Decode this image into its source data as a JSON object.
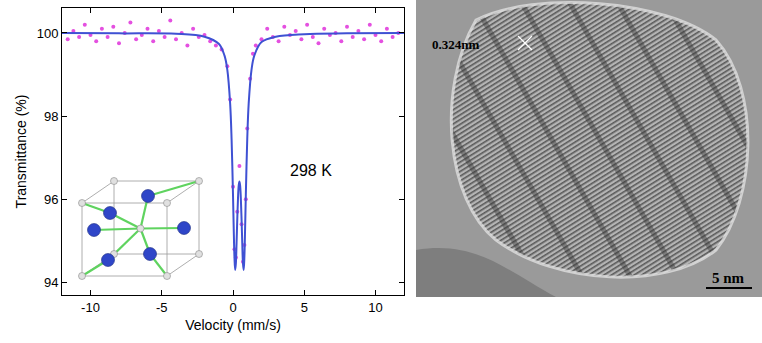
{
  "chart_data": {
    "type": "scatter",
    "x_label": "Velocity (mm/s)",
    "y_label": "Transmittance (%)",
    "annotations": [
      {
        "text": "298 K",
        "x": 5.5,
        "y": 96.7
      }
    ],
    "xlim": [
      -12,
      12
    ],
    "xticks": [
      -10,
      -5,
      0,
      5,
      10
    ],
    "ylim": [
      93.7,
      100.6
    ],
    "yticks": [
      94,
      96,
      98,
      100
    ],
    "grid": false,
    "series": [
      {
        "type": "scatter",
        "marker": "circle",
        "color": "#e450e0",
        "x": [
          -11.6,
          -11.2,
          -10.8,
          -10.4,
          -10.0,
          -9.6,
          -9.2,
          -8.8,
          -8.4,
          -8.0,
          -7.6,
          -7.2,
          -6.8,
          -6.4,
          -6.0,
          -5.6,
          -5.2,
          -4.8,
          -4.4,
          -4.0,
          -3.6,
          -3.2,
          -2.8,
          -2.4,
          -2.0,
          -1.6,
          -1.2,
          -0.8,
          -0.4,
          -0.2,
          0.0,
          0.1,
          0.2,
          0.3,
          0.45,
          0.6,
          0.7,
          0.8,
          0.9,
          1.0,
          1.2,
          1.4,
          1.6,
          2.0,
          2.4,
          2.8,
          3.2,
          3.6,
          4.0,
          4.4,
          4.8,
          5.2,
          5.6,
          6.0,
          6.4,
          6.8,
          7.2,
          7.6,
          8.0,
          8.4,
          8.8,
          9.2,
          9.6,
          10.0,
          10.4,
          10.8,
          11.2,
          11.6
        ],
        "values": [
          99.85,
          100.05,
          99.9,
          100.2,
          99.95,
          99.8,
          100.1,
          99.9,
          100.15,
          99.75,
          100.0,
          100.25,
          99.85,
          99.95,
          100.1,
          99.8,
          100.05,
          99.9,
          100.3,
          99.85,
          100.0,
          99.7,
          100.1,
          99.9,
          99.95,
          99.8,
          99.7,
          99.6,
          99.2,
          98.4,
          96.3,
          94.8,
          94.6,
          95.7,
          96.8,
          95.4,
          94.5,
          94.9,
          96.0,
          97.7,
          98.9,
          99.5,
          99.7,
          99.85,
          100.1,
          99.9,
          99.8,
          100.15,
          99.95,
          100.05,
          99.85,
          100.2,
          99.9,
          99.75,
          100.1,
          99.95,
          100.0,
          99.8,
          100.15,
          99.9,
          100.05,
          99.85,
          100.2,
          99.95,
          99.8,
          100.1,
          99.9,
          100.0
        ]
      },
      {
        "type": "line",
        "line_style": "solid",
        "color": "#3f51d3",
        "x": [
          -12,
          -8,
          -4,
          -2,
          -1,
          -0.6,
          -0.4,
          -0.2,
          -0.1,
          0,
          0.05,
          0.1,
          0.15,
          0.2,
          0.25,
          0.3,
          0.35,
          0.4,
          0.45,
          0.5,
          0.55,
          0.6,
          0.65,
          0.7,
          0.75,
          0.8,
          0.85,
          0.9,
          1.0,
          1.1,
          1.3,
          1.5,
          2,
          3,
          5,
          8,
          12
        ],
        "values": [
          100.0,
          99.99,
          99.98,
          99.91,
          99.74,
          99.46,
          99.12,
          98.3,
          97.45,
          96.11,
          95.31,
          94.63,
          94.3,
          94.45,
          94.95,
          95.53,
          96.02,
          96.33,
          96.43,
          96.33,
          96.02,
          95.53,
          94.95,
          94.45,
          94.3,
          94.63,
          95.31,
          96.11,
          97.45,
          98.3,
          99.12,
          99.46,
          99.78,
          99.91,
          99.97,
          99.99,
          100.0
        ]
      }
    ]
  },
  "micrograph": {
    "lattice_spacing_label": "0.324nm",
    "scale_bar_label": "5 nm"
  }
}
